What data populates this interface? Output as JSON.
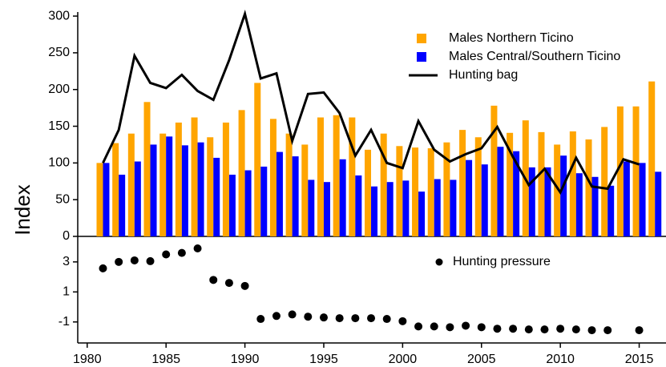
{
  "chart_data": [
    {
      "type": "bar",
      "ylabel": "Index",
      "x": [
        1981,
        1982,
        1983,
        1984,
        1985,
        1986,
        1987,
        1988,
        1989,
        1990,
        1991,
        1992,
        1993,
        1994,
        1995,
        1996,
        1997,
        1998,
        1999,
        2000,
        2001,
        2002,
        2003,
        2004,
        2005,
        2006,
        2007,
        2008,
        2009,
        2010,
        2011,
        2012,
        2013,
        2014,
        2015,
        2016
      ],
      "series": [
        {
          "name": "Males Northern Ticino",
          "type": "bar",
          "color": "#ffa500",
          "values": [
            100,
            127,
            140,
            183,
            140,
            155,
            162,
            135,
            155,
            172,
            209,
            160,
            140,
            125,
            162,
            165,
            162,
            118,
            140,
            123,
            121,
            120,
            128,
            145,
            135,
            178,
            141,
            158,
            142,
            125,
            143,
            132,
            149,
            177,
            177,
            211
          ]
        },
        {
          "name": "Males Central/Southern Ticino",
          "type": "bar",
          "color": "#0000ff",
          "values": [
            100,
            84,
            102,
            125,
            136,
            124,
            128,
            107,
            84,
            90,
            95,
            115,
            109,
            77,
            74,
            105,
            83,
            68,
            74,
            76,
            61,
            78,
            77,
            104,
            98,
            122,
            116,
            94,
            94,
            110,
            86,
            81,
            69,
            102,
            100,
            88
          ]
        },
        {
          "name": "Hunting bag",
          "type": "line",
          "color": "#000000",
          "values": [
            100,
            145,
            246,
            209,
            202,
            220,
            198,
            186,
            240,
            303,
            215,
            222,
            130,
            194,
            196,
            168,
            110,
            145,
            100,
            93,
            157,
            118,
            102,
            112,
            120,
            149,
            108,
            70,
            92,
            60,
            107,
            68,
            65,
            105,
            98,
            null
          ]
        }
      ],
      "xlim": [
        1979.4,
        2016.7
      ],
      "ylim": [
        0,
        311
      ],
      "yticks": [
        0,
        50,
        100,
        150,
        200,
        250,
        300
      ],
      "legend": "upper right"
    },
    {
      "type": "scatter",
      "x": [
        1981,
        1982,
        1983,
        1984,
        1985,
        1986,
        1987,
        1988,
        1989,
        1990,
        1991,
        1992,
        1993,
        1994,
        1995,
        1996,
        1997,
        1998,
        1999,
        2000,
        2001,
        2002,
        2003,
        2004,
        2005,
        2006,
        2007,
        2008,
        2009,
        2010,
        2011,
        2012,
        2013,
        2015
      ],
      "series": [
        {
          "name": "Hunting pressure",
          "color": "#000000",
          "values": [
            2.57,
            3.0,
            3.1,
            3.05,
            3.5,
            3.6,
            3.9,
            1.8,
            1.6,
            1.4,
            -0.8,
            -0.6,
            -0.5,
            -0.65,
            -0.7,
            -0.75,
            -0.75,
            -0.75,
            -0.8,
            -0.95,
            -1.3,
            -1.3,
            -1.35,
            -1.25,
            -1.35,
            -1.45,
            -1.45,
            -1.5,
            -1.5,
            -1.45,
            -1.5,
            -1.55,
            -1.55,
            -1.55
          ]
        }
      ],
      "xlim": [
        1979.4,
        2016.7
      ],
      "ylim": [
        -2.4,
        4.7
      ],
      "yticks": [
        -1,
        1,
        3
      ],
      "xticks": [
        1980,
        1985,
        1990,
        1995,
        2000,
        2005,
        2010,
        2015
      ]
    }
  ]
}
